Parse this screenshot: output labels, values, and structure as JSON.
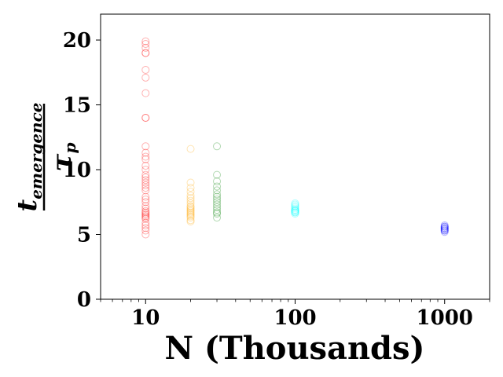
{
  "chart_data": {
    "type": "scatter",
    "x_scale": "log",
    "xlim": [
      5,
      2000
    ],
    "ylim": [
      0,
      22
    ],
    "xlabel": "N (Thousands)",
    "ylabel": {
      "numerator": "t",
      "numerator_subscript": "emergence",
      "denominator": "τ",
      "denominator_subscript": "p"
    },
    "x_ticks": [
      {
        "value": 10,
        "label": "10"
      },
      {
        "value": 100,
        "label": "100"
      },
      {
        "value": 1000,
        "label": "1000"
      }
    ],
    "y_ticks": [
      {
        "value": 0,
        "label": "0"
      },
      {
        "value": 5,
        "label": "5"
      },
      {
        "value": 10,
        "label": "10"
      },
      {
        "value": 15,
        "label": "15"
      },
      {
        "value": 20,
        "label": "20"
      }
    ],
    "grid": false,
    "marker": "hollow-circle",
    "series": [
      {
        "color": "#ff0000",
        "x": 10,
        "y": [
          19.9,
          19.7,
          19.4,
          19.0,
          19.0,
          17.7,
          17.1,
          15.9,
          14.0,
          14.0,
          11.8,
          11.3,
          11.0,
          10.8,
          10.3,
          10.0,
          9.6,
          9.4,
          9.2,
          9.0,
          8.8,
          8.6,
          8.4,
          7.9,
          7.7,
          7.5,
          7.2,
          7.0,
          6.8,
          6.7,
          6.6,
          6.5,
          6.4,
          6.3,
          6.2,
          5.9,
          5.7,
          5.5,
          5.3,
          5.0
        ]
      },
      {
        "color": "#ffa500",
        "x": 20,
        "y": [
          11.6,
          9.0,
          8.6,
          8.3,
          8.0,
          7.8,
          7.6,
          7.4,
          7.2,
          7.1,
          7.0,
          6.9,
          6.8,
          6.7,
          6.6,
          6.5,
          6.4,
          6.3,
          6.1,
          6.0
        ]
      },
      {
        "color": "#008000",
        "x": 30,
        "y": [
          11.8,
          9.6,
          9.1,
          8.7,
          8.4,
          8.1,
          7.9,
          7.7,
          7.5,
          7.3,
          7.1,
          6.9,
          6.7,
          6.6,
          6.3
        ]
      },
      {
        "color": "#00ffff",
        "x": 100,
        "y": [
          7.4,
          7.3,
          7.2,
          7.1,
          7.0,
          6.9,
          6.9,
          6.8,
          6.8,
          6.7,
          6.7,
          6.6
        ]
      },
      {
        "color": "#0000ff",
        "x": 1000,
        "y": [
          5.7,
          5.6,
          5.6,
          5.5,
          5.5,
          5.4,
          5.4,
          5.3,
          5.3,
          5.2
        ]
      }
    ]
  }
}
